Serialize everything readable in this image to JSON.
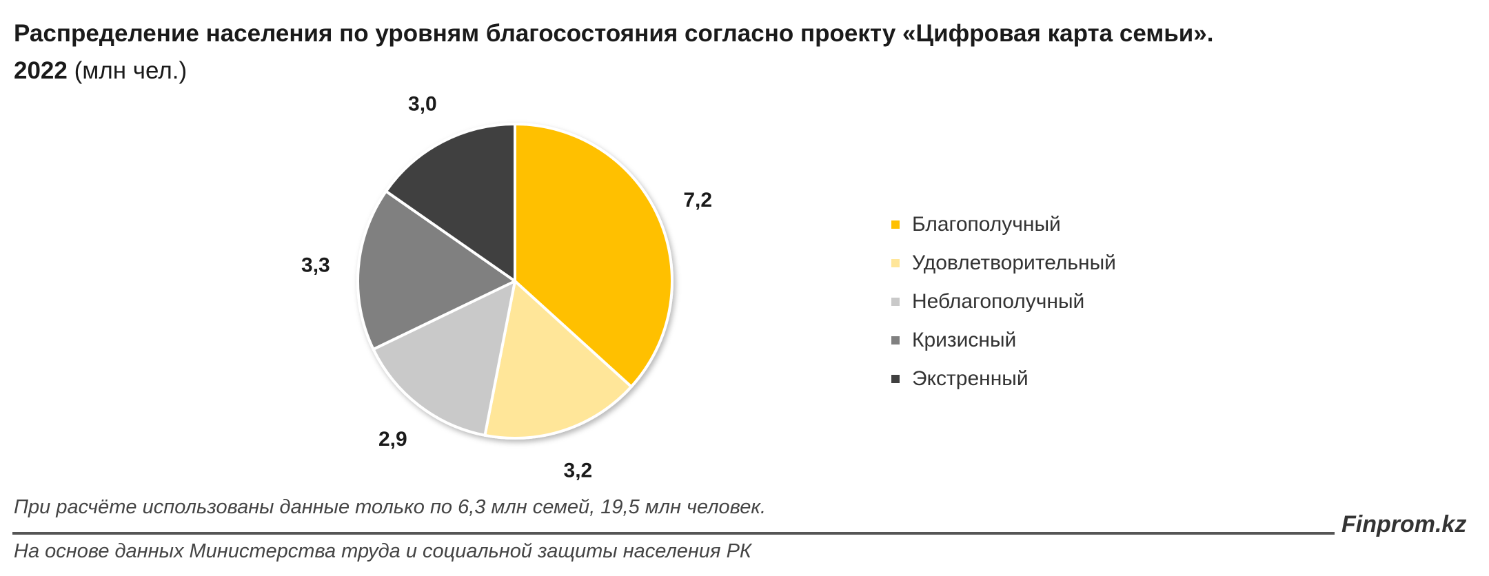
{
  "title": {
    "line1": "Распределение населения по уровням благосостояния согласно проекту «Цифровая карта семьи».",
    "year": "2022",
    "unit": "(млн чел.)"
  },
  "chart_data": {
    "type": "pie",
    "categories": [
      "Благополучный",
      "Удовлетворительный",
      "Неблагополучный",
      "Кризисный",
      "Экстренный"
    ],
    "values": [
      7.2,
      3.2,
      2.9,
      3.3,
      3.0
    ],
    "value_labels": [
      "7,2",
      "3,2",
      "2,9",
      "3,3",
      "3,0"
    ],
    "colors": [
      "#FFC000",
      "#FFE699",
      "#C9C9C9",
      "#808080",
      "#404040"
    ],
    "start": "12 o'clock, clockwise",
    "legend_position": "right"
  },
  "footnote": "При расчёте использованы данные только по 6,3 млн семей, 19,5 млн человек.",
  "brand": "Finprom.kz",
  "source": "На основе данных Министерства труда и социальной защиты населения РК"
}
